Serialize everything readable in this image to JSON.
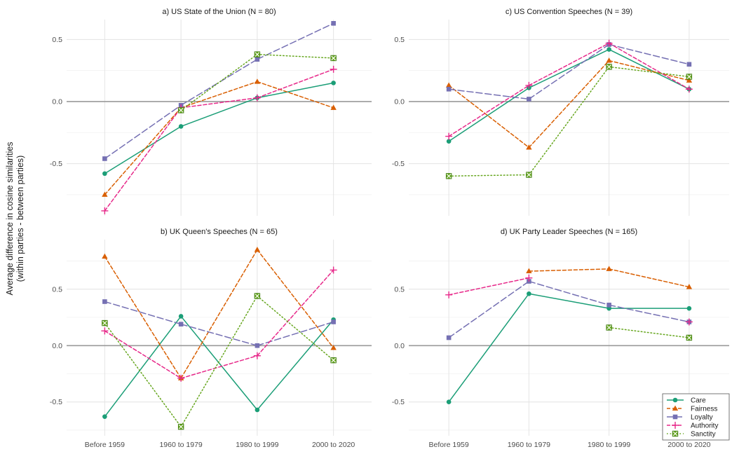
{
  "y_axis_label_lines": [
    "Average difference in cosine similarities",
    "(within parties - between parties)"
  ],
  "legend": [
    "Care",
    "Fairness",
    "Loyalty",
    "Authority",
    "Sanctity"
  ],
  "colors": {
    "Care": "#1b9e77",
    "Fairness": "#d95f02",
    "Loyalty": "#7570b3",
    "Authority": "#e7298a",
    "Sanctity": "#66a61e"
  },
  "line_styles": {
    "Care": "solid",
    "Fairness": "dashed",
    "Loyalty": "longdash",
    "Authority": "dashed",
    "Sanctity": "dotted"
  },
  "markers": {
    "Care": "circle",
    "Fairness": "triangle",
    "Loyalty": "square",
    "Authority": "plus",
    "Sanctity": "boxed-x"
  },
  "chart_data": [
    {
      "type": "line",
      "title": "a) US State of the Union (N = 80)",
      "categories": [
        "Before 1959",
        "1960 to 1979",
        "1980 to 1999",
        "2000 to 2020"
      ],
      "ylim": [
        -0.92,
        0.66
      ],
      "yticks": [
        -0.5,
        0.0,
        0.5
      ],
      "ytick_labels": [
        "-0.5",
        "0.0",
        "0.5"
      ],
      "show_x_labels": false,
      "series": [
        {
          "name": "Care",
          "values": [
            -0.58,
            -0.2,
            0.03,
            0.15
          ]
        },
        {
          "name": "Fairness",
          "values": [
            -0.75,
            -0.05,
            0.16,
            -0.05
          ]
        },
        {
          "name": "Loyalty",
          "values": [
            -0.46,
            -0.03,
            0.34,
            0.63
          ]
        },
        {
          "name": "Authority",
          "values": [
            -0.88,
            -0.05,
            0.03,
            0.26
          ]
        },
        {
          "name": "Sanctity",
          "values": [
            null,
            -0.07,
            0.38,
            0.35
          ]
        }
      ]
    },
    {
      "type": "line",
      "title": "c) US Convention Speeches (N = 39)",
      "categories": [
        "Before 1959",
        "1960 to 1979",
        "1980 to 1999",
        "2000 to 2020"
      ],
      "ylim": [
        -0.92,
        0.66
      ],
      "yticks": [
        -0.5,
        0.0,
        0.5
      ],
      "ytick_labels": [
        "-0.5",
        "0.0",
        "0.5"
      ],
      "show_x_labels": false,
      "series": [
        {
          "name": "Care",
          "values": [
            -0.32,
            0.11,
            0.42,
            0.1
          ]
        },
        {
          "name": "Fairness",
          "values": [
            0.13,
            -0.37,
            0.33,
            0.17
          ]
        },
        {
          "name": "Loyalty",
          "values": [
            0.1,
            0.02,
            0.46,
            0.3
          ]
        },
        {
          "name": "Authority",
          "values": [
            -0.28,
            0.13,
            0.47,
            0.1
          ]
        },
        {
          "name": "Sanctity",
          "values": [
            -0.6,
            -0.59,
            0.28,
            0.2
          ]
        }
      ]
    },
    {
      "type": "line",
      "title": "b) UK Queen's Speeches (N = 65)",
      "categories": [
        "Before 1959",
        "1960 to 1979",
        "1980 to 1999",
        "2000 to 2020"
      ],
      "ylim": [
        -0.8,
        0.94
      ],
      "yticks": [
        -0.5,
        0.0,
        0.5
      ],
      "ytick_labels": [
        "-0.5",
        "0.0",
        "0.5"
      ],
      "show_x_labels": true,
      "series": [
        {
          "name": "Care",
          "values": [
            -0.63,
            0.26,
            -0.57,
            0.23
          ]
        },
        {
          "name": "Fairness",
          "values": [
            0.79,
            -0.29,
            0.85,
            -0.02
          ]
        },
        {
          "name": "Loyalty",
          "values": [
            0.39,
            0.19,
            0.0,
            0.21
          ]
        },
        {
          "name": "Authority",
          "values": [
            0.13,
            -0.29,
            -0.09,
            0.67
          ]
        },
        {
          "name": "Sanctity",
          "values": [
            0.2,
            -0.72,
            0.44,
            -0.13
          ]
        }
      ]
    },
    {
      "type": "line",
      "title": "d) UK Party Leader Speeches (N = 165)",
      "categories": [
        "Before 1959",
        "1960 to 1979",
        "1980 to 1999",
        "2000 to 2020"
      ],
      "ylim": [
        -0.8,
        0.94
      ],
      "yticks": [
        -0.5,
        0.0,
        0.5
      ],
      "ytick_labels": [
        "-0.5",
        "0.0",
        "0.5"
      ],
      "show_x_labels": true,
      "series": [
        {
          "name": "Care",
          "values": [
            -0.5,
            0.46,
            0.33,
            0.33
          ]
        },
        {
          "name": "Fairness",
          "values": [
            null,
            0.66,
            0.68,
            0.52
          ]
        },
        {
          "name": "Loyalty",
          "values": [
            0.07,
            0.57,
            0.36,
            0.21
          ]
        },
        {
          "name": "Authority",
          "values": [
            0.45,
            0.6,
            null,
            0.21
          ]
        },
        {
          "name": "Sanctity",
          "values": [
            null,
            null,
            0.16,
            0.07
          ]
        }
      ]
    }
  ]
}
